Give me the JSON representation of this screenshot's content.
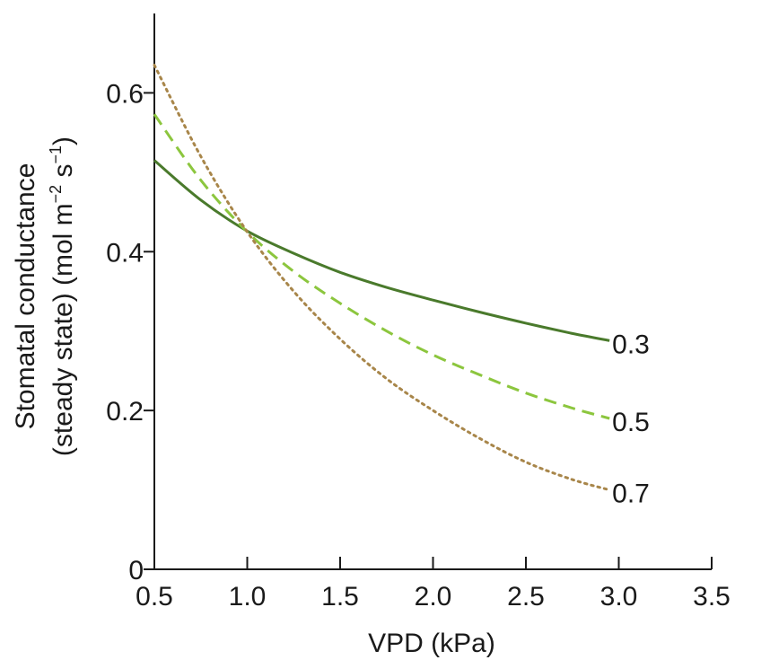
{
  "chart_data": {
    "type": "line",
    "xlabel": "VPD (kPa)",
    "ylabel_line1": "Stomatal conductance",
    "ylabel_line2_prefix": "(steady state) (mol m",
    "ylabel_sup1": "−2",
    "ylabel_mid": " s",
    "ylabel_sup2": "−1",
    "ylabel_suffix": ")",
    "xlim": [
      0.5,
      3.5
    ],
    "ylim": [
      0,
      0.7
    ],
    "xticks": [
      0.5,
      1.0,
      1.5,
      2.0,
      2.5,
      3.0,
      3.5
    ],
    "xtick_labels": [
      "0.5",
      "1.0",
      "1.5",
      "2.0",
      "2.5",
      "3.0",
      "3.5"
    ],
    "yticks": [
      0,
      0.2,
      0.4,
      0.6
    ],
    "ytick_labels": [
      "0",
      "0.2",
      "0.4",
      "0.6"
    ],
    "grid": false,
    "series": [
      {
        "name": "0.3",
        "color": "#4a7a2c",
        "dash": "solid",
        "x": [
          0.5,
          0.75,
          1.0,
          1.25,
          1.5,
          1.75,
          2.0,
          2.25,
          2.5,
          2.75,
          2.95
        ],
        "y": [
          0.515,
          0.465,
          0.426,
          0.398,
          0.374,
          0.355,
          0.339,
          0.324,
          0.31,
          0.297,
          0.288
        ]
      },
      {
        "name": "0.5",
        "color": "#8cc63e",
        "dash": "dashed",
        "x": [
          0.5,
          0.75,
          1.0,
          1.25,
          1.5,
          1.75,
          2.0,
          2.25,
          2.5,
          2.75,
          2.95
        ],
        "y": [
          0.573,
          0.49,
          0.425,
          0.375,
          0.335,
          0.3,
          0.27,
          0.245,
          0.222,
          0.203,
          0.19
        ]
      },
      {
        "name": "0.7",
        "color": "#a8864a",
        "dash": "dotted",
        "x": [
          0.5,
          0.75,
          1.0,
          1.25,
          1.5,
          1.75,
          2.0,
          2.25,
          2.5,
          2.75,
          2.95
        ],
        "y": [
          0.635,
          0.52,
          0.425,
          0.35,
          0.29,
          0.24,
          0.2,
          0.165,
          0.135,
          0.113,
          0.1
        ]
      }
    ]
  }
}
